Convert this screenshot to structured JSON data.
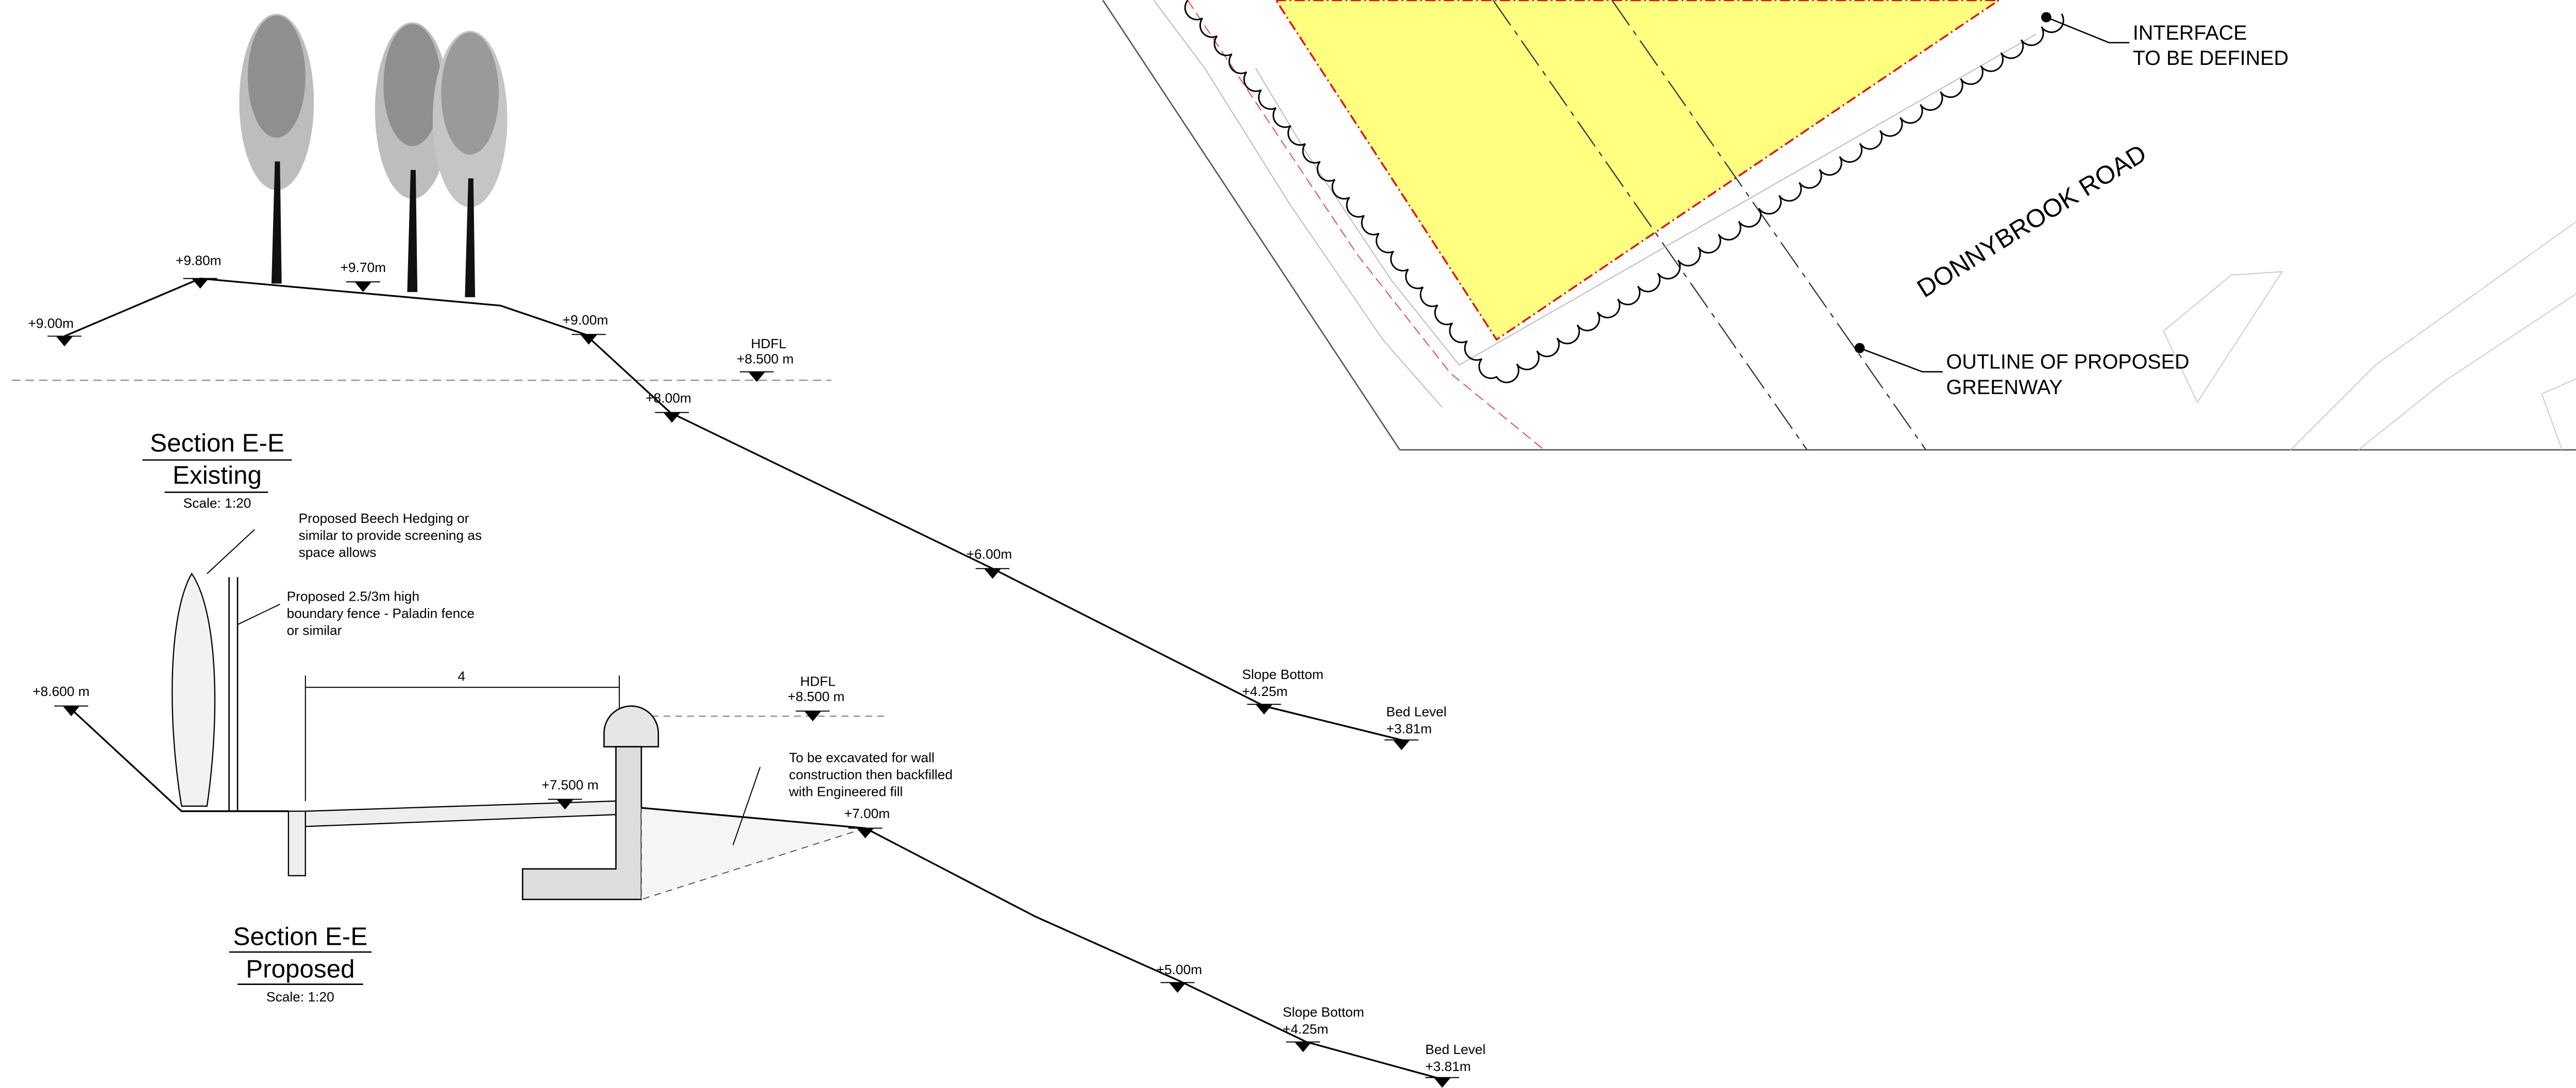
{
  "existing_section": {
    "title": "Section  E-E",
    "subtitle": "Existing",
    "scale": "Scale: 1:20",
    "levels": [
      "+9.00m",
      "+9.80m",
      "+9.70m",
      "+9.00m",
      "+8.00m",
      "+6.00m"
    ],
    "hdfl": [
      "HDFL",
      "+8.500 m"
    ],
    "slope_bottom": [
      "Slope Bottom",
      "+4.25m"
    ],
    "bed_level": [
      "Bed Level",
      "+3.81m"
    ]
  },
  "proposed_section": {
    "title": "Section E-E",
    "subtitle": "Proposed",
    "scale": "Scale: 1:20",
    "levels": [
      "+8.600 m",
      "+7.500 m",
      "+7.00m",
      "+5.00m"
    ],
    "hdfl": [
      "HDFL",
      "+8.500 m"
    ],
    "slope_bottom": [
      "Slope Bottom",
      "+4.25m"
    ],
    "bed_level": [
      "Bed Level",
      "+3.81m"
    ],
    "dimension": 4,
    "notes": [
      [
        "Proposed Beech Hedging or",
        "similar to provide screening as",
        "space allows"
      ],
      [
        "Proposed 2.5/3m high",
        "boundary fence - Paladin fence",
        "or similar"
      ],
      [
        "To be excavated for wall",
        "construction then backfilled",
        "with Engineered fill"
      ]
    ]
  },
  "plan": {
    "road_name": "DONNYBROOK ROAD",
    "callouts": [
      [
        "INTERFACE",
        "TO BE DEFINED"
      ],
      [
        "OUTLINE OF PROPOSED",
        "GREENWAY"
      ]
    ]
  }
}
